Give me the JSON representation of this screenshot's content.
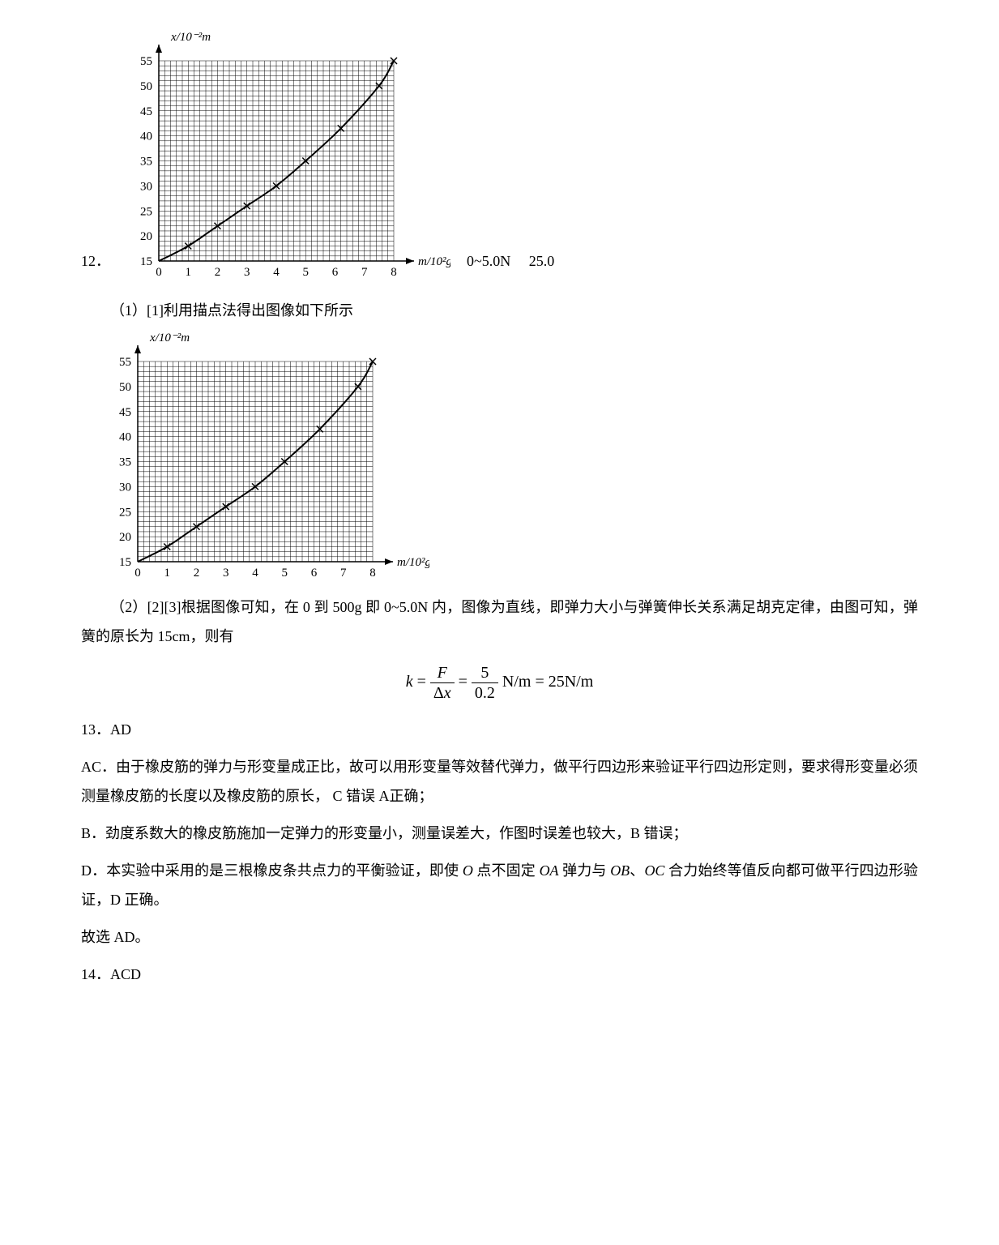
{
  "q12": {
    "number": "12．",
    "answers": [
      "0~5.0N",
      "25.0"
    ],
    "sub1_label": "（1）[1]利用描点法得出图像如下所示",
    "sub2_text": "（2）[2][3]根据图像可知，在 0 到 500g 即 0~5.0N 内，图像为直线，即弹力大小与弹簧伸长关系满足胡克定律，由图可知，弹簧的原长为 15cm，则有",
    "formula": {
      "k": "k",
      "eq": "=",
      "F": "F",
      "dx": "Δx",
      "n2": "5",
      "d2": "0.2",
      "unit": "N/m",
      "val": "25N/m"
    }
  },
  "chart": {
    "y_label": "x/10⁻²m",
    "x_label": "m/10²g",
    "x_ticks": [
      0,
      1,
      2,
      3,
      4,
      5,
      6,
      7,
      8
    ],
    "y_ticks": [
      15,
      20,
      25,
      30,
      35,
      40,
      45,
      50,
      55
    ],
    "xlim": [
      0,
      8
    ],
    "ylim": [
      15,
      55
    ],
    "points": [
      [
        1,
        18
      ],
      [
        2,
        22
      ],
      [
        3,
        26
      ],
      [
        4,
        30
      ],
      [
        5,
        35
      ],
      [
        6.2,
        41.5
      ],
      [
        7.5,
        50
      ],
      [
        8,
        55
      ]
    ],
    "grid_color": "#000000",
    "curve_color": "#000000",
    "bg": "#ffffff",
    "point_marker": "x",
    "curve_width": 2
  },
  "q13": {
    "number": "13．",
    "answer": "AD",
    "lineAC": "AC．由于橡皮筋的弹力与形变量成正比，故可以用形变量等效替代弹力，做平行四边形来验证平行四边形定则，要求得形变量必须测量橡皮筋的长度以及橡皮筋的原长， C 错误 A正确；",
    "lineB": "B．劲度系数大的橡皮筋施加一定弹力的形变量小，测量误差大，作图时误差也较大，B 错误；",
    "lineD_pre": "D．本实验中采用的是三根橡皮条共点力的平衡验证，即使 ",
    "lineD_O": "O",
    "lineD_mid1": " 点不固定 ",
    "lineD_OA": "OA",
    "lineD_mid2": " 弹力与 ",
    "lineD_OB": "OB",
    "lineD_mid3": "、",
    "lineD_OC": "OC",
    "lineD_post": " 合力始终等值反向都可做平行四边形验证，D 正确。",
    "conclusion": "故选 AD。"
  },
  "q14": {
    "number": "14．",
    "answer": "ACD"
  }
}
